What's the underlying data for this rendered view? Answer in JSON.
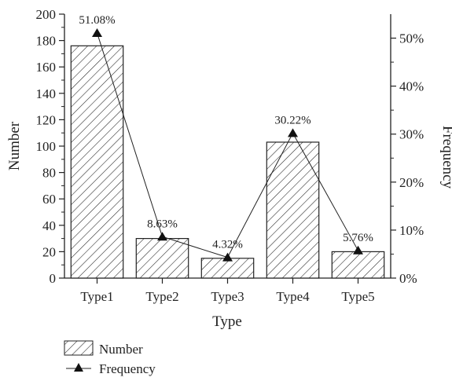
{
  "chart_data": {
    "type": "bar",
    "categories": [
      "Type1",
      "Type2",
      "Type3",
      "Type4",
      "Type5"
    ],
    "xlabel": "Type",
    "ylabel_left": "Number",
    "ylabel_right": "Frequency",
    "ylim_left": [
      0,
      200
    ],
    "ylim_right": [
      0,
      55
    ],
    "left_ticks": [
      0,
      20,
      40,
      60,
      80,
      100,
      120,
      140,
      160,
      180,
      200
    ],
    "right_ticks": [
      0,
      10,
      20,
      30,
      40,
      50
    ],
    "right_tick_labels": [
      "0%",
      "10%",
      "20%",
      "30%",
      "40%",
      "50%"
    ],
    "grid": false,
    "legend_position": "bottom-left",
    "series": [
      {
        "name": "Number",
        "type": "bar",
        "axis": "left",
        "pattern": "diagonal-hatch",
        "values": [
          176,
          30,
          15,
          103,
          20
        ]
      },
      {
        "name": "Frequency",
        "type": "line",
        "axis": "right",
        "marker": "triangle",
        "values": [
          51.08,
          8.63,
          4.32,
          30.22,
          5.76
        ],
        "labels": [
          "51.08%",
          "8.63%",
          "4.32%",
          "30.22%",
          "5.76%"
        ]
      }
    ]
  }
}
